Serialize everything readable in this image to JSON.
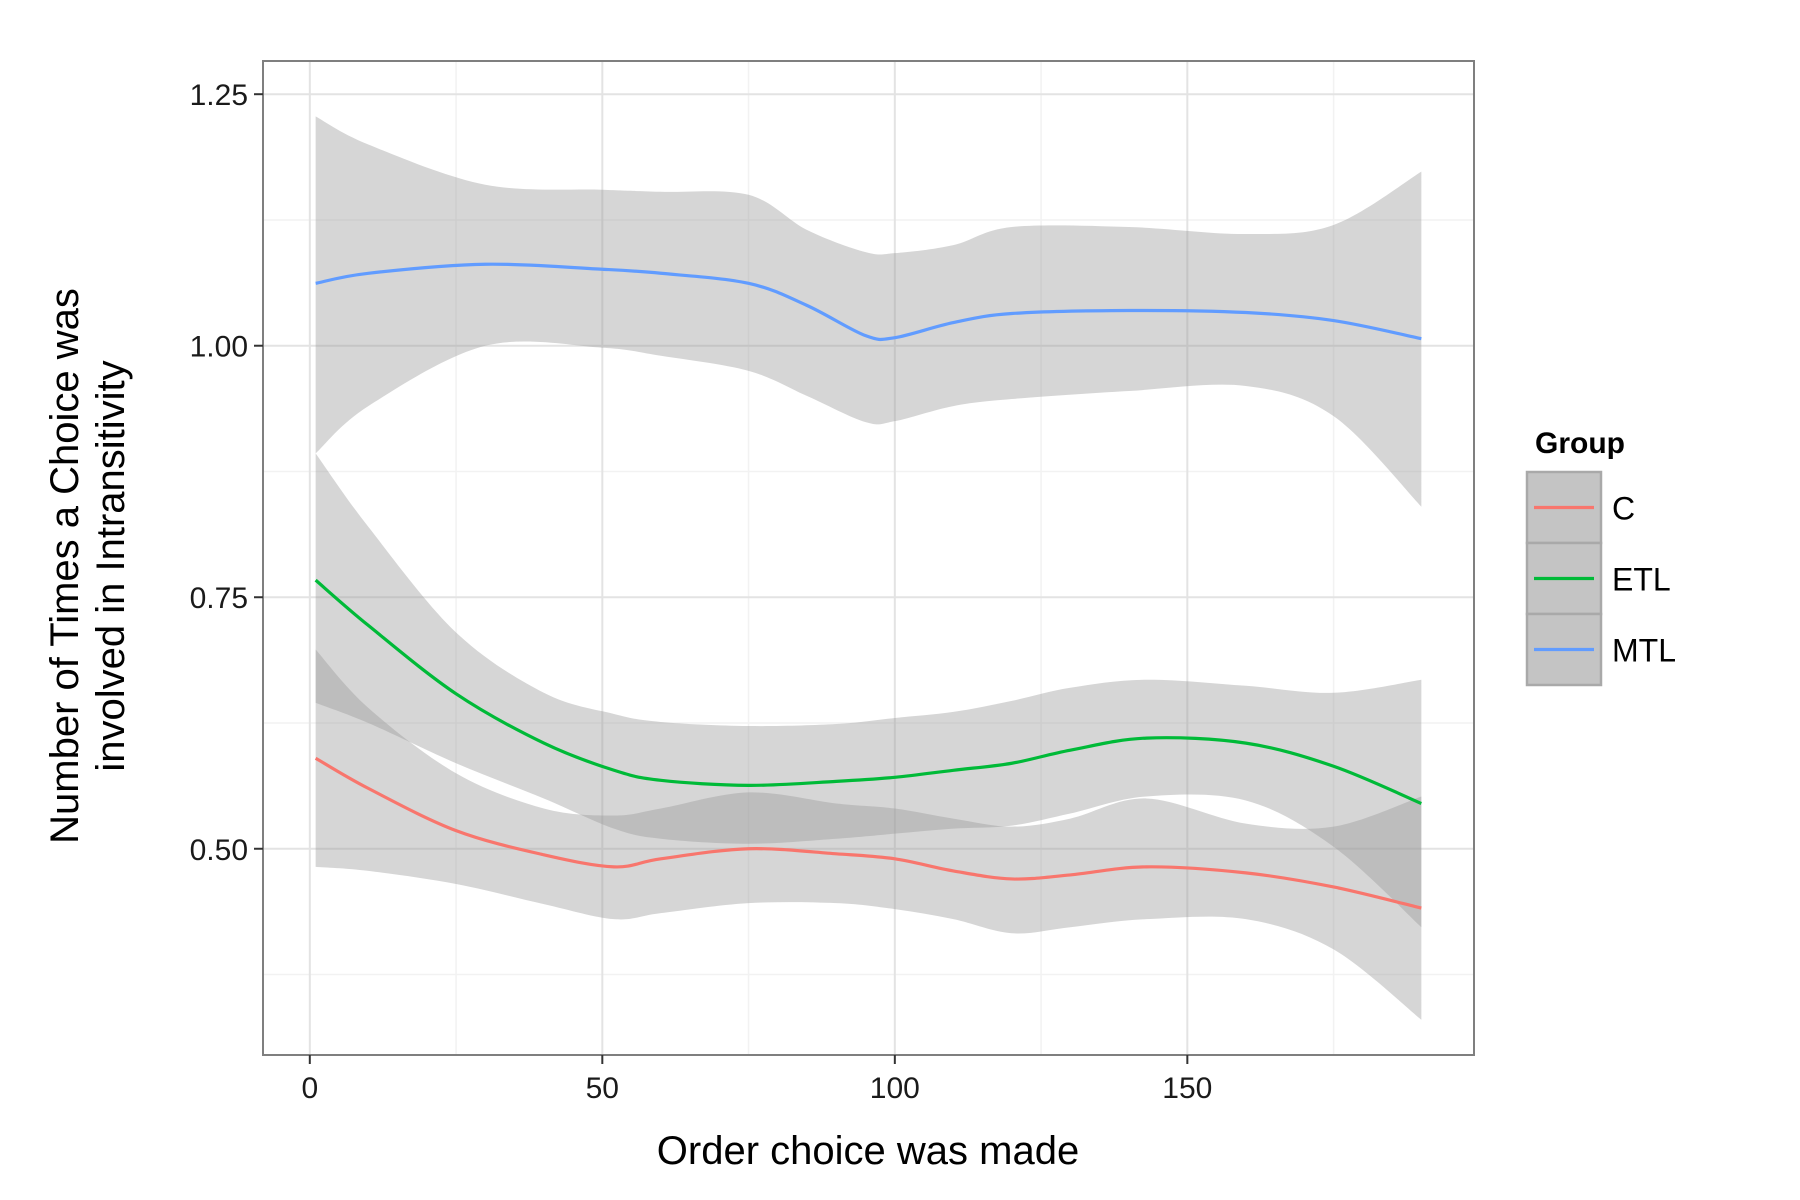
{
  "chart_data": {
    "type": "line",
    "title": "",
    "xlabel": "Order choice was made",
    "ylabel_lines": [
      "Number of Times a Choice was",
      "involved in Intransitivity"
    ],
    "xlim": [
      -8,
      199
    ],
    "ylim": [
      0.295,
      1.283
    ],
    "x_ticks": [
      0,
      50,
      100,
      150
    ],
    "x_tick_labels": [
      "0",
      "50",
      "100",
      "150"
    ],
    "y_ticks": [
      0.5,
      0.75,
      1.0,
      1.25
    ],
    "y_tick_labels": [
      "0.50",
      "0.75",
      "1.00",
      "1.25"
    ],
    "grid": true,
    "legend_title": "Group",
    "legend_position": "right",
    "series": [
      {
        "name": "C",
        "color": "#F8766D",
        "x": [
          1,
          10,
          25,
          40,
          52,
          60,
          75,
          90,
          100,
          110,
          120,
          130,
          143,
          160,
          175,
          190
        ],
        "y": [
          0.59,
          0.56,
          0.518,
          0.494,
          0.482,
          0.49,
          0.5,
          0.495,
          0.49,
          0.478,
          0.47,
          0.474,
          0.482,
          0.476,
          0.462,
          0.441
        ],
        "lower": [
          0.482,
          0.478,
          0.465,
          0.445,
          0.43,
          0.436,
          0.446,
          0.446,
          0.44,
          0.43,
          0.416,
          0.422,
          0.43,
          0.43,
          0.4,
          0.33
        ],
        "upper": [
          0.698,
          0.64,
          0.575,
          0.54,
          0.533,
          0.54,
          0.556,
          0.545,
          0.54,
          0.53,
          0.522,
          0.53,
          0.55,
          0.525,
          0.522,
          0.552
        ]
      },
      {
        "name": "ETL",
        "color": "#00BA38",
        "x": [
          1,
          10,
          25,
          40,
          52,
          60,
          75,
          90,
          100,
          110,
          120,
          130,
          143,
          160,
          175,
          190
        ],
        "y": [
          0.767,
          0.722,
          0.654,
          0.605,
          0.578,
          0.568,
          0.563,
          0.567,
          0.571,
          0.578,
          0.585,
          0.598,
          0.61,
          0.605,
          0.582,
          0.545
        ],
        "lower": [
          0.645,
          0.625,
          0.585,
          0.55,
          0.52,
          0.51,
          0.505,
          0.51,
          0.515,
          0.52,
          0.523,
          0.535,
          0.552,
          0.548,
          0.502,
          0.422
        ],
        "upper": [
          0.893,
          0.82,
          0.715,
          0.655,
          0.634,
          0.626,
          0.622,
          0.624,
          0.63,
          0.636,
          0.647,
          0.66,
          0.668,
          0.662,
          0.655,
          0.668
        ]
      },
      {
        "name": "MTL",
        "color": "#619CFF",
        "x": [
          1,
          10,
          30,
          50,
          60,
          75,
          85,
          95,
          100,
          110,
          120,
          140,
          160,
          175,
          190
        ],
        "y": [
          1.062,
          1.072,
          1.081,
          1.076,
          1.072,
          1.062,
          1.04,
          1.01,
          1.008,
          1.023,
          1.032,
          1.035,
          1.033,
          1.025,
          1.007
        ],
        "lower": [
          0.893,
          0.94,
          1.0,
          0.998,
          0.99,
          0.975,
          0.95,
          0.924,
          0.925,
          0.94,
          0.947,
          0.955,
          0.96,
          0.93,
          0.84
        ],
        "upper": [
          1.228,
          1.2,
          1.16,
          1.155,
          1.153,
          1.15,
          1.115,
          1.093,
          1.092,
          1.1,
          1.118,
          1.118,
          1.111,
          1.12,
          1.173
        ]
      }
    ]
  }
}
